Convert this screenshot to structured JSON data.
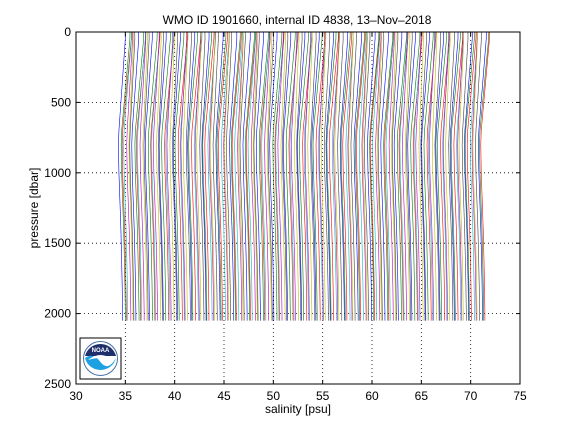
{
  "chart_data": {
    "type": "line",
    "title": "WMO ID 1901660, internal ID 4838, 13–Nov–2018",
    "xlabel": "salinity [psu]",
    "ylabel": "pressure [dbar]",
    "xlim": [
      30,
      75
    ],
    "ylim": [
      0,
      2500
    ],
    "y_reversed": true,
    "grid": true,
    "x_ticks": [
      30,
      35,
      40,
      45,
      50,
      55,
      60,
      65,
      70,
      75
    ],
    "y_ticks": [
      0,
      500,
      1000,
      1500,
      2000,
      2500
    ],
    "profile_offset_step": 0.2,
    "profile_count": 185,
    "base_profile": {
      "pressure": [
        0,
        50,
        100,
        200,
        300,
        400,
        500,
        600,
        700,
        800,
        1000,
        1200,
        1400,
        1600,
        1800,
        2000,
        2050
      ],
      "salinity": [
        35.0,
        35.0,
        34.95,
        34.85,
        34.75,
        34.65,
        34.55,
        34.45,
        34.35,
        34.3,
        34.35,
        34.45,
        34.55,
        34.62,
        34.68,
        34.72,
        34.72
      ]
    },
    "line_colors": [
      "#0000ff",
      "#008000",
      "#ff0000",
      "#00bfbf",
      "#bf00bf",
      "#bfbf00",
      "#404040"
    ],
    "logo_label": "NOAA"
  }
}
